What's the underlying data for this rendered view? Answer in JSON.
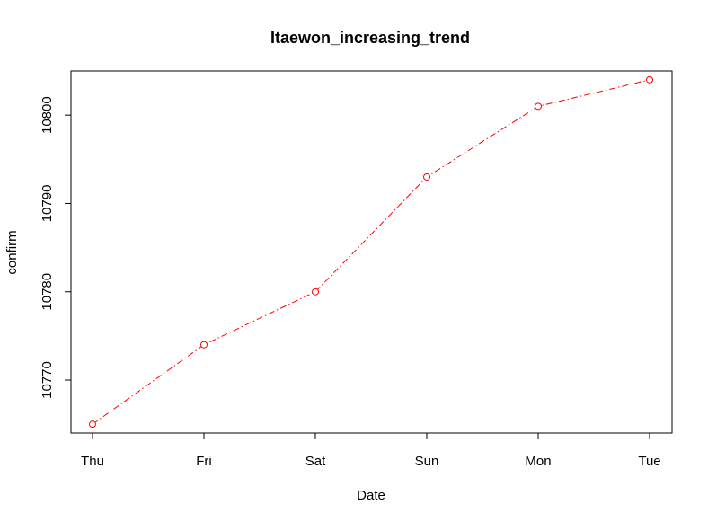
{
  "chart_data": {
    "type": "line",
    "title": "Itaewon_increasing_trend",
    "xlabel": "Date",
    "ylabel": "confirm",
    "categories": [
      "Thu",
      "Fri",
      "Sat",
      "Sun",
      "Mon",
      "Tue"
    ],
    "values": [
      10765,
      10774,
      10780,
      10793,
      10801,
      10804
    ],
    "yticks": [
      10770,
      10780,
      10790,
      10800
    ],
    "ylim": [
      10764,
      10805
    ],
    "line_style": "dot-dash",
    "marker": "open-circle",
    "color": "#ff0000",
    "grid": false,
    "legend": "none"
  }
}
